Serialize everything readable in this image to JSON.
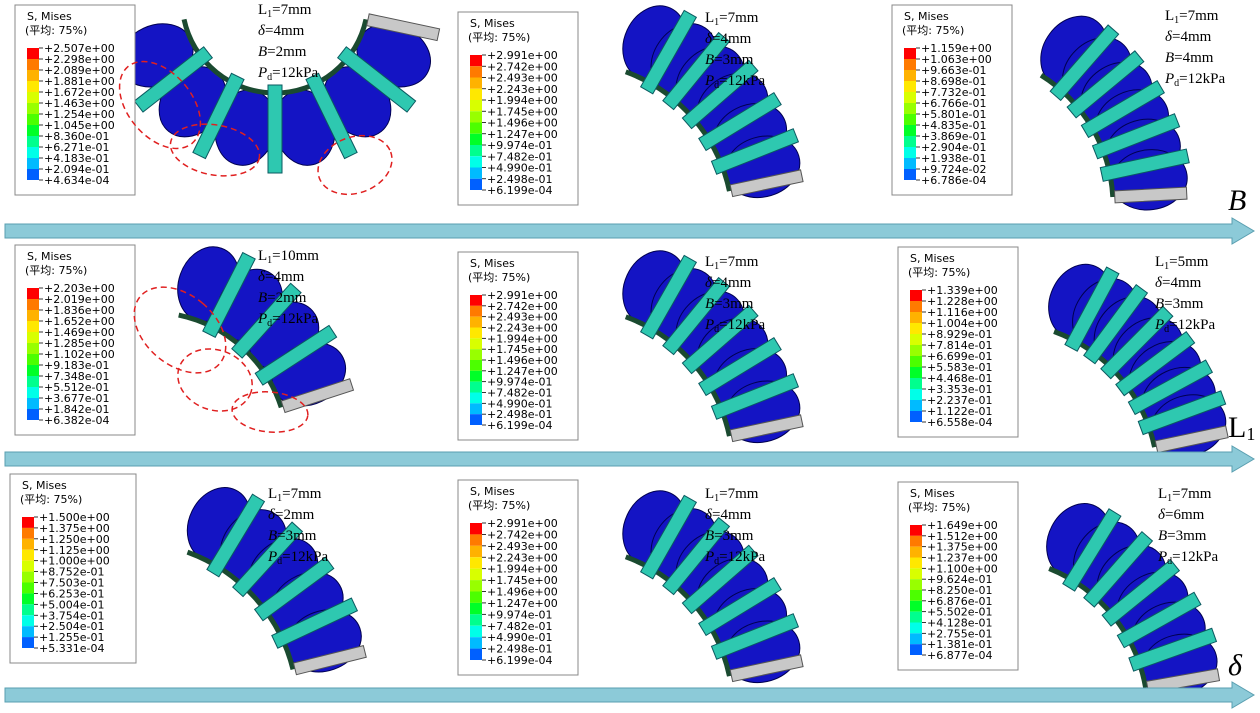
{
  "panels": [
    {
      "legend": {
        "title": "S, Mises",
        "subtitle": "(平均: 75%)",
        "values": [
          "+2.507e+00",
          "+2.298e+00",
          "+2.089e+00",
          "+1.881e+00",
          "+1.672e+00",
          "+1.463e+00",
          "+1.254e+00",
          "+1.045e+00",
          "+8.360e-01",
          "+6.271e-01",
          "+4.183e-01",
          "+2.094e-01",
          "+4.634e-04"
        ]
      },
      "params": [
        {
          "symbol": "L",
          "subscript": "1",
          "value": "=7mm"
        },
        {
          "symbol": "δ",
          "value": "=4mm"
        },
        {
          "symbol": "B",
          "value": "=2mm"
        },
        {
          "symbol": "P",
          "subscript": "d",
          "value": "=12kPa"
        }
      ]
    },
    {
      "legend": {
        "title": "S, Mises",
        "subtitle": "(平均: 75%)",
        "values": [
          "+2.991e+00",
          "+2.742e+00",
          "+2.493e+00",
          "+2.243e+00",
          "+1.994e+00",
          "+1.745e+00",
          "+1.496e+00",
          "+1.247e+00",
          "+9.974e-01",
          "+7.482e-01",
          "+4.990e-01",
          "+2.498e-01",
          "+6.199e-04"
        ]
      },
      "params": [
        {
          "symbol": "L",
          "subscript": "1",
          "value": "=7mm"
        },
        {
          "symbol": "δ",
          "value": "=4mm"
        },
        {
          "symbol": "B",
          "value": "=3mm"
        },
        {
          "symbol": "P",
          "subscript": "d",
          "value": "=12kPa"
        }
      ]
    },
    {
      "legend": {
        "title": "S, Mises",
        "subtitle": "(平均: 75%)",
        "values": [
          "+1.159e+00",
          "+1.063e+00",
          "+9.663e-01",
          "+8.698e-01",
          "+7.732e-01",
          "+6.766e-01",
          "+5.801e-01",
          "+4.835e-01",
          "+3.869e-01",
          "+2.904e-01",
          "+1.938e-01",
          "+9.724e-02",
          "+6.786e-04"
        ]
      },
      "params": [
        {
          "symbol": "L",
          "subscript": "1",
          "value": "=7mm"
        },
        {
          "symbol": "δ",
          "value": "=4mm"
        },
        {
          "symbol": "B",
          "value": "=4mm"
        },
        {
          "symbol": "P",
          "subscript": "d",
          "value": "=12kPa"
        }
      ]
    },
    {
      "legend": {
        "title": "S, Mises",
        "subtitle": "(平均: 75%)",
        "values": [
          "+2.203e+00",
          "+2.019e+00",
          "+1.836e+00",
          "+1.652e+00",
          "+1.469e+00",
          "+1.285e+00",
          "+1.102e+00",
          "+9.183e-01",
          "+7.348e-01",
          "+5.512e-01",
          "+3.677e-01",
          "+1.842e-01",
          "+6.382e-04"
        ]
      },
      "params": [
        {
          "symbol": "L",
          "subscript": "1",
          "value": "=10mm"
        },
        {
          "symbol": "δ",
          "value": "=4mm"
        },
        {
          "symbol": "B",
          "value": "=2mm"
        },
        {
          "symbol": "P",
          "subscript": "d",
          "value": "=12kPa"
        }
      ]
    },
    {
      "legend": {
        "title": "S, Mises",
        "subtitle": "(平均: 75%)",
        "values": [
          "+2.991e+00",
          "+2.742e+00",
          "+2.493e+00",
          "+2.243e+00",
          "+1.994e+00",
          "+1.745e+00",
          "+1.496e+00",
          "+1.247e+00",
          "+9.974e-01",
          "+7.482e-01",
          "+4.990e-01",
          "+2.498e-01",
          "+6.199e-04"
        ]
      },
      "params": [
        {
          "symbol": "L",
          "subscript": "1",
          "value": "=7mm"
        },
        {
          "symbol": "δ",
          "value": "=4mm"
        },
        {
          "symbol": "B",
          "value": "=3mm"
        },
        {
          "symbol": "P",
          "subscript": "d",
          "value": "=12kPa"
        }
      ]
    },
    {
      "legend": {
        "title": "S, Mises",
        "subtitle": "(平均: 75%)",
        "values": [
          "+1.339e+00",
          "+1.228e+00",
          "+1.116e+00",
          "+1.004e+00",
          "+8.929e-01",
          "+7.814e-01",
          "+6.699e-01",
          "+5.583e-01",
          "+4.468e-01",
          "+3.353e-01",
          "+2.237e-01",
          "+1.122e-01",
          "+6.558e-04"
        ]
      },
      "params": [
        {
          "symbol": "L",
          "subscript": "1",
          "value": "=5mm"
        },
        {
          "symbol": "δ",
          "value": "=4mm"
        },
        {
          "symbol": "B",
          "value": "=3mm"
        },
        {
          "symbol": "P",
          "subscript": "d",
          "value": "=12kPa"
        }
      ]
    },
    {
      "legend": {
        "title": "S, Mises",
        "subtitle": "(平均: 75%)",
        "values": [
          "+1.500e+00",
          "+1.375e+00",
          "+1.250e+00",
          "+1.125e+00",
          "+1.000e+00",
          "+8.752e-01",
          "+7.503e-01",
          "+6.253e-01",
          "+5.004e-01",
          "+3.754e-01",
          "+2.504e-01",
          "+1.255e-01",
          "+5.331e-04"
        ]
      },
      "params": [
        {
          "symbol": "L",
          "subscript": "1",
          "value": "=7mm"
        },
        {
          "symbol": "δ",
          "value": "=2mm"
        },
        {
          "symbol": "B",
          "value": "=3mm"
        },
        {
          "symbol": "P",
          "subscript": "d",
          "value": "=12kPa"
        }
      ]
    },
    {
      "legend": {
        "title": "S, Mises",
        "subtitle": "(平均: 75%)",
        "values": [
          "+2.991e+00",
          "+2.742e+00",
          "+2.493e+00",
          "+2.243e+00",
          "+1.994e+00",
          "+1.745e+00",
          "+1.496e+00",
          "+1.247e+00",
          "+9.974e-01",
          "+7.482e-01",
          "+4.990e-01",
          "+2.498e-01",
          "+6.199e-04"
        ]
      },
      "params": [
        {
          "symbol": "L",
          "subscript": "1",
          "value": "=7mm"
        },
        {
          "symbol": "δ",
          "value": "=4mm"
        },
        {
          "symbol": "B",
          "value": "=3mm"
        },
        {
          "symbol": "P",
          "subscript": "d",
          "value": "=12kPa"
        }
      ]
    },
    {
      "legend": {
        "title": "S, Mises",
        "subtitle": "(平均: 75%)",
        "values": [
          "+1.649e+00",
          "+1.512e+00",
          "+1.375e+00",
          "+1.237e+00",
          "+1.100e+00",
          "+9.624e-01",
          "+8.250e-01",
          "+6.876e-01",
          "+5.502e-01",
          "+4.128e-01",
          "+2.755e-01",
          "+1.381e-01",
          "+6.877e-04"
        ]
      },
      "params": [
        {
          "symbol": "L",
          "subscript": "1",
          "value": "=7mm"
        },
        {
          "symbol": "δ",
          "value": "=6mm"
        },
        {
          "symbol": "B",
          "value": "=3mm"
        },
        {
          "symbol": "P",
          "subscript": "d",
          "value": "=12kPa"
        }
      ]
    }
  ],
  "arrows": [
    {
      "symbol": "B"
    },
    {
      "symbol": "L",
      "subscript": "1"
    },
    {
      "symbol": "δ"
    }
  ]
}
